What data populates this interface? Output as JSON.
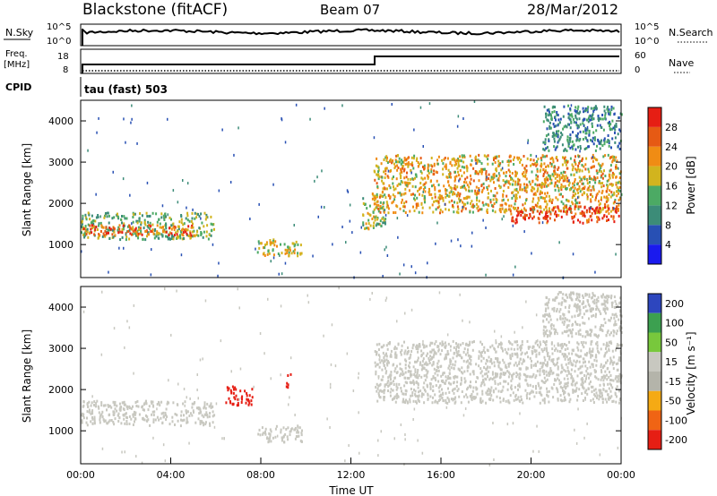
{
  "header": {
    "station": "Blackstone (fitACF)",
    "beam": "Beam 07",
    "date": "28/Mar/2012"
  },
  "noise_panel": {
    "left_label": "N.Sky",
    "left_ticks": [
      "10^5",
      "10^0"
    ],
    "right_label": "N.Search",
    "right_ticks": [
      "10^5",
      "10^0"
    ]
  },
  "freq_panel": {
    "left_label_1": "Freq.",
    "left_label_2": "[MHz]",
    "left_ticks": [
      "18",
      "8"
    ],
    "right_label": "Nave",
    "right_ticks": [
      "60",
      "0"
    ]
  },
  "cpid": {
    "label": "CPID",
    "value": "tau (fast) 503"
  },
  "colors": {
    "power": [
      "#1a1aee",
      "#2850b4",
      "#3c8c78",
      "#4caa64",
      "#d2b41e",
      "#f08c14",
      "#e65a14",
      "#e61e14"
    ],
    "velocity": [
      "#e61e14",
      "#f06414",
      "#f5aa14",
      "#b4b4aa",
      "#c8c8c0",
      "#78c83c",
      "#3ca050",
      "#2d46be"
    ]
  },
  "chart_data": [
    {
      "type": "heatmap",
      "name": "power",
      "xlabel": "",
      "ylabel": "Slant Range [km]",
      "ylim": [
        200,
        4500
      ],
      "yticks": [
        "1000",
        "2000",
        "3000",
        "4000"
      ],
      "colorbar_label": "Power [dB]",
      "colorbar_ticks": [
        "4",
        "8",
        "12",
        "16",
        "20",
        "24",
        "28"
      ],
      "features": [
        {
          "t0": 0.0,
          "t1": 5.9,
          "r0": 1150,
          "r1": 1800,
          "value_db": 14
        },
        {
          "t0": 0.1,
          "t1": 5.0,
          "r0": 1250,
          "r1": 1500,
          "value_db": 26
        },
        {
          "t0": 7.8,
          "t1": 9.8,
          "r0": 750,
          "r1": 1150,
          "value_db": 18
        },
        {
          "t0": 12.5,
          "t1": 13.5,
          "r0": 1400,
          "r1": 2300,
          "value_db": 16
        },
        {
          "t0": 13.0,
          "t1": 24.0,
          "r0": 1800,
          "r1": 3200,
          "value_db": 20
        },
        {
          "t0": 19.0,
          "t1": 23.9,
          "r0": 1550,
          "r1": 1950,
          "value_db": 28
        },
        {
          "t0": 20.5,
          "t1": 24.0,
          "r0": 3300,
          "r1": 4400,
          "value_db": 10
        }
      ]
    },
    {
      "type": "heatmap",
      "name": "velocity",
      "xlabel": "Time UT",
      "ylabel": "Slant Range [km]",
      "ylim": [
        200,
        4500
      ],
      "yticks": [
        "1000",
        "2000",
        "3000",
        "4000"
      ],
      "xticks": [
        "00:00",
        "04:00",
        "08:00",
        "12:00",
        "16:00",
        "20:00",
        "00:00"
      ],
      "xlim_hours": [
        0,
        24
      ],
      "colorbar_label": "Velocity [m s⁻¹]",
      "colorbar_ticks": [
        "-200",
        "-100",
        "-50",
        "-15",
        "15",
        "50",
        "100",
        "200"
      ],
      "features": [
        {
          "t0": 0.0,
          "t1": 5.9,
          "r0": 1150,
          "r1": 1750,
          "value_ms": 0
        },
        {
          "t0": 6.4,
          "t1": 7.6,
          "r0": 1650,
          "r1": 2100,
          "value_ms": -250
        },
        {
          "t0": 9.1,
          "t1": 9.3,
          "r0": 2050,
          "r1": 2400,
          "value_ms": -220
        },
        {
          "t0": 7.8,
          "t1": 9.8,
          "r0": 750,
          "r1": 1150,
          "value_ms": 0
        },
        {
          "t0": 13.0,
          "t1": 24.0,
          "r0": 1700,
          "r1": 3200,
          "value_ms": 0
        },
        {
          "t0": 20.5,
          "t1": 24.0,
          "r0": 3300,
          "r1": 4400,
          "value_ms": 0
        }
      ]
    }
  ]
}
